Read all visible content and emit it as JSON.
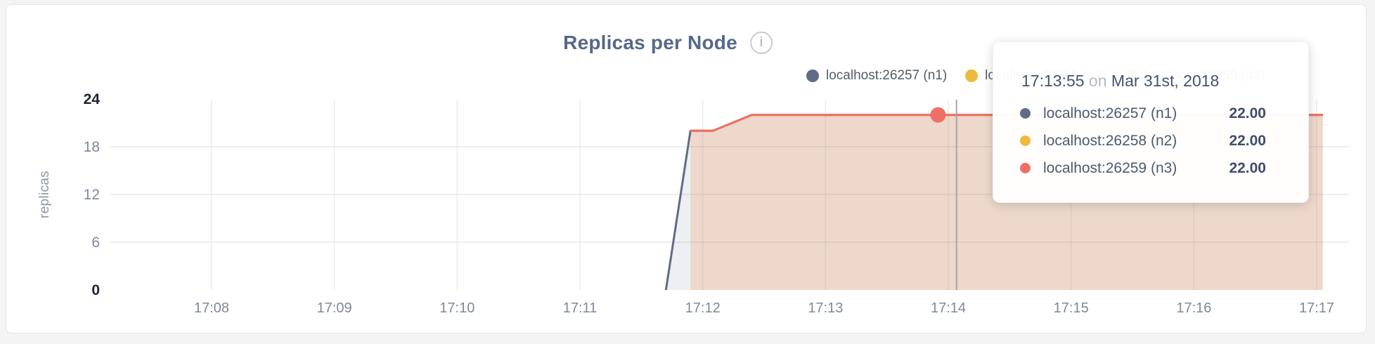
{
  "page": {
    "background": "#f4f4f5",
    "card_background": "#ffffff",
    "card_border": "#e3e3e4"
  },
  "header": {
    "title": "Replicas per Node",
    "info_icon_glyph": "i"
  },
  "legend": [
    {
      "label": "localhost:26257 (n1)",
      "color": "#5f6c87"
    },
    {
      "label": "localhost:26258 (n2)",
      "color": "#efb93d"
    },
    {
      "label": "localhost:26259 (n3)",
      "color": "#ee6f66"
    }
  ],
  "chart_data": {
    "type": "area",
    "title": "Replicas per Node",
    "xlabel": "",
    "ylabel": "replicas",
    "ylim": [
      0,
      24
    ],
    "yticks": [
      0,
      6,
      12,
      18,
      24
    ],
    "yticks_emphasized": [
      0,
      24
    ],
    "grid": true,
    "legend_position": "top-right",
    "x_tick_labels": [
      "17:08",
      "17:09",
      "17:10",
      "17:11",
      "17:12",
      "17:13",
      "17:14",
      "17:15",
      "17:16",
      "17:17"
    ],
    "x_tick_interval_seconds": 60,
    "series": [
      {
        "name": "localhost:26257 (n1)",
        "color": "#5f6c87",
        "fill_opacity": 0.11,
        "points_t_seconds_value": [
          [
            222,
            0
          ],
          [
            234,
            20
          ],
          [
            245,
            20
          ],
          [
            264,
            22
          ],
          [
            543,
            22
          ]
        ]
      },
      {
        "name": "localhost:26258 (n2)",
        "color": "#efb93d",
        "fill_opacity": 0.12,
        "points_t_seconds_value": [
          [
            234,
            20
          ],
          [
            245,
            20
          ],
          [
            264,
            22
          ],
          [
            543,
            22
          ]
        ]
      },
      {
        "name": "localhost:26259 (n3)",
        "color": "#ee6f66",
        "fill_opacity": 0.13,
        "points_t_seconds_value": [
          [
            234,
            20
          ],
          [
            245,
            20
          ],
          [
            264,
            22
          ],
          [
            543,
            22
          ]
        ]
      }
    ],
    "hover": {
      "crosshair_t_seconds": 364,
      "point_t_seconds": 355,
      "point_value": 22,
      "point_series": "localhost:26259 (n3)",
      "crosshair_color": "#a6a6a6",
      "dot_color": "#ee6f66"
    },
    "colors": {
      "h_gridline": "#e8e8e8",
      "v_gridline": "#ececec",
      "tick_label": "#7f8899",
      "tick_label_emphasized": "#1c2433"
    }
  },
  "tooltip": {
    "time": "17:13:55",
    "on_word": "on",
    "date": "Mar 31st, 2018",
    "rows": [
      {
        "label": "localhost:26257 (n1)",
        "value": "22.00",
        "color": "#5f6c87"
      },
      {
        "label": "localhost:26258 (n2)",
        "value": "22.00",
        "color": "#efb93d"
      },
      {
        "label": "localhost:26259 (n3)",
        "value": "22.00",
        "color": "#ee6f66"
      }
    ]
  }
}
